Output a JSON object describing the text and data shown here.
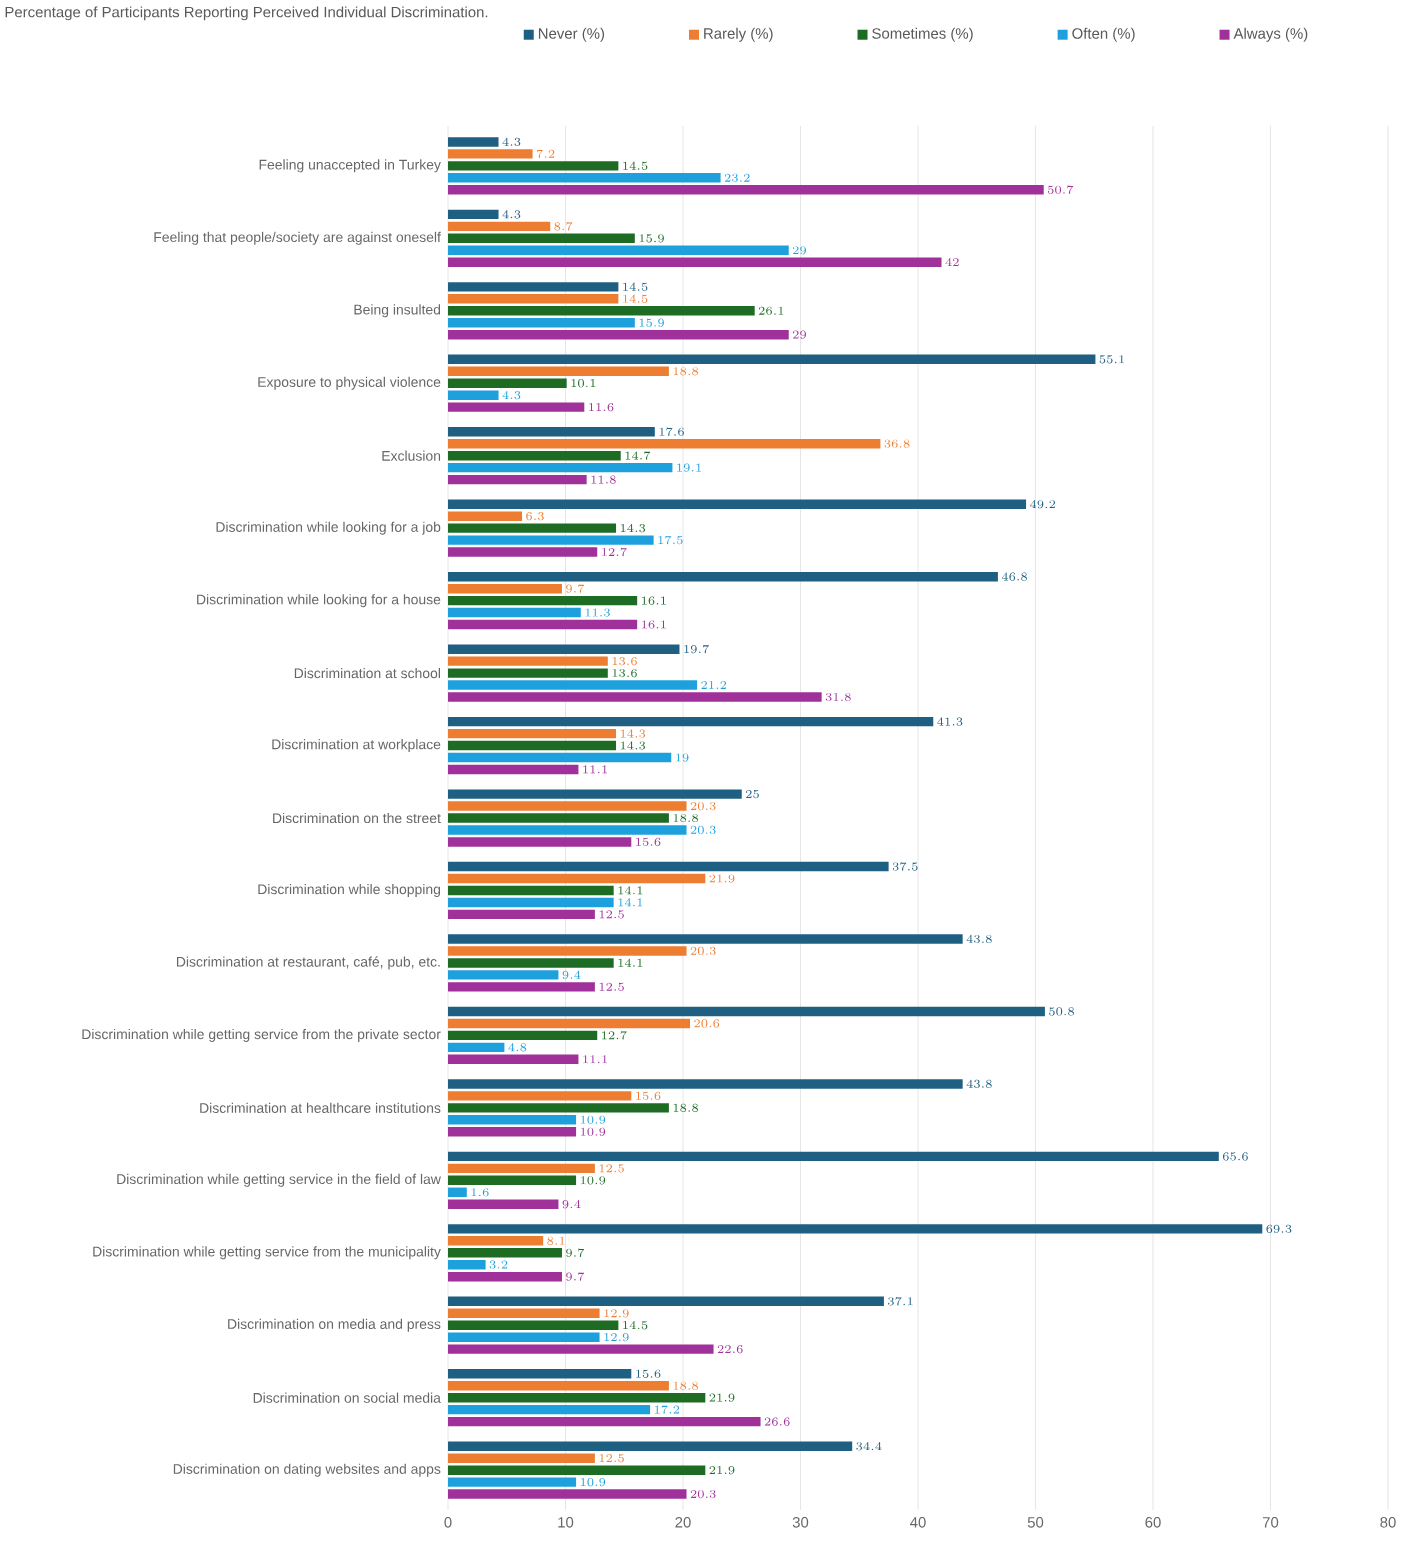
{
  "chart_data": {
    "type": "bar",
    "orientation": "horizontal",
    "title": "Percentage of Participants Reporting Perceived Individual Discrimination.",
    "categories": [
      "Feeling unaccepted in Turkey",
      "Feeling that people/society are against oneself",
      "Being insulted",
      "Exposure to physical violence",
      "Exclusion",
      "Discrimination while looking for a job",
      "Discrimination while looking for a house",
      "Discrimination at school",
      "Discrimination at workplace",
      "Discrimination on the street",
      "Discrimination while shopping",
      "Discrimination at restaurant, café, pub, etc.",
      "Discrimination while getting service from the private sector",
      "Discrimination at healthcare institutions",
      "Discrimination while getting service in the field of law",
      "Discrimination while getting service from the municipality",
      "Discrimination on media and press",
      "Discrimination on social media",
      "Discrimination on dating websites and apps"
    ],
    "series": [
      {
        "name": "Never (%)",
        "color": "#1f5f82",
        "values": [
          4.3,
          4.3,
          14.5,
          55.1,
          17.6,
          49.2,
          46.8,
          19.7,
          41.3,
          25,
          37.5,
          43.8,
          50.8,
          43.8,
          65.6,
          69.3,
          37.1,
          15.6,
          34.4
        ]
      },
      {
        "name": "Rarely (%)",
        "color": "#ed7d31",
        "values": [
          7.2,
          8.7,
          14.5,
          18.8,
          36.8,
          6.3,
          9.7,
          13.6,
          14.3,
          20.3,
          21.9,
          20.3,
          20.6,
          15.6,
          12.5,
          8.1,
          12.9,
          18.8,
          12.5
        ]
      },
      {
        "name": "Sometimes (%)",
        "color": "#1e6b24",
        "values": [
          14.5,
          15.9,
          26.1,
          10.1,
          14.7,
          14.3,
          16.1,
          13.6,
          14.3,
          18.8,
          14.1,
          14.1,
          12.7,
          18.8,
          10.9,
          9.7,
          14.5,
          21.9,
          21.9
        ]
      },
      {
        "name": "Often (%)",
        "color": "#1ea0dc",
        "values": [
          23.2,
          29,
          15.9,
          4.3,
          19.1,
          17.5,
          11.3,
          21.2,
          19,
          20.3,
          14.1,
          9.4,
          4.8,
          10.9,
          1.6,
          3.2,
          12.9,
          17.2,
          10.9
        ]
      },
      {
        "name": "Always (%)",
        "color": "#a0309a",
        "values": [
          50.7,
          42,
          29,
          11.6,
          11.8,
          12.7,
          16.1,
          31.8,
          11.1,
          15.6,
          12.5,
          12.5,
          11.1,
          10.9,
          9.4,
          9.7,
          22.6,
          26.6,
          20.3
        ]
      }
    ],
    "xlim": [
      0,
      80
    ],
    "xticks": [
      0,
      10,
      20,
      30,
      40,
      50,
      60,
      70,
      80
    ],
    "grid": "x",
    "legend": "top",
    "data_labels": true
  }
}
